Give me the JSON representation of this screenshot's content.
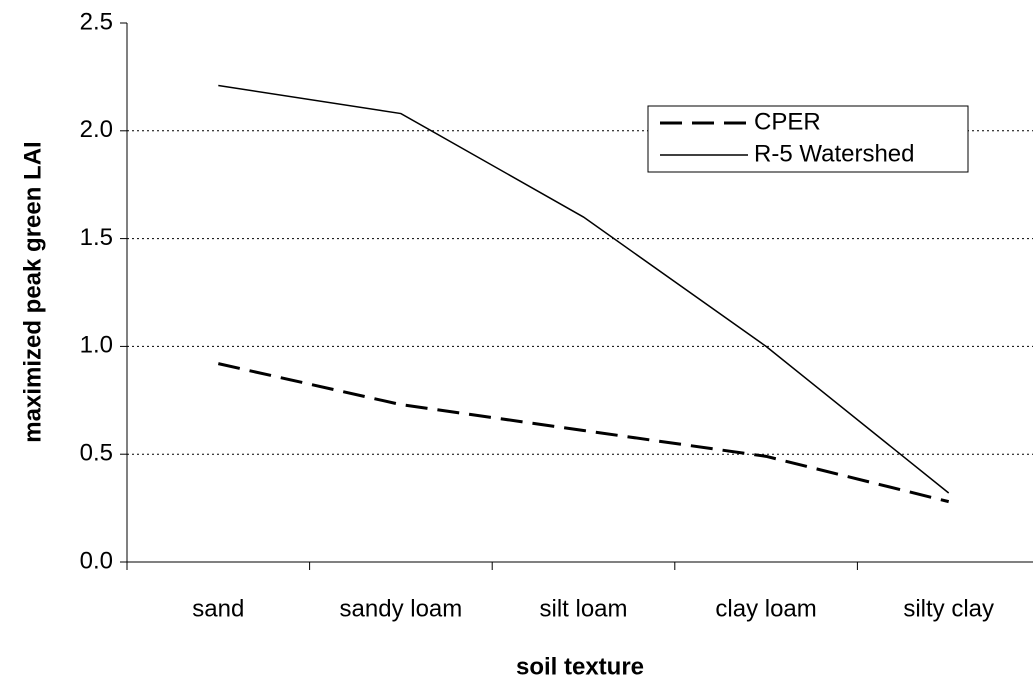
{
  "chart_data": {
    "type": "line",
    "x_label": "soil texture",
    "y_label": "maximized peak green LAI",
    "categories": [
      "sand",
      "sandy loam",
      "silt loam",
      "clay loam",
      "silty clay"
    ],
    "series": [
      {
        "name": "CPER",
        "color": "#000000",
        "dash": "dashed",
        "values": [
          0.92,
          0.73,
          0.61,
          0.49,
          0.28
        ]
      },
      {
        "name": "R-5 Watershed",
        "color": "#000000",
        "dash": "solid",
        "values": [
          2.21,
          2.08,
          1.6,
          1.0,
          0.32
        ]
      }
    ],
    "ylim": [
      0,
      2.5
    ],
    "yticks": [
      {
        "value": 0,
        "label": "0.0"
      },
      0.5,
      {
        "value": 1,
        "label": "1.0"
      },
      1.5,
      {
        "value": 2,
        "label": "2.0"
      },
      2.5
    ],
    "grid": true,
    "legend": "upper right"
  }
}
